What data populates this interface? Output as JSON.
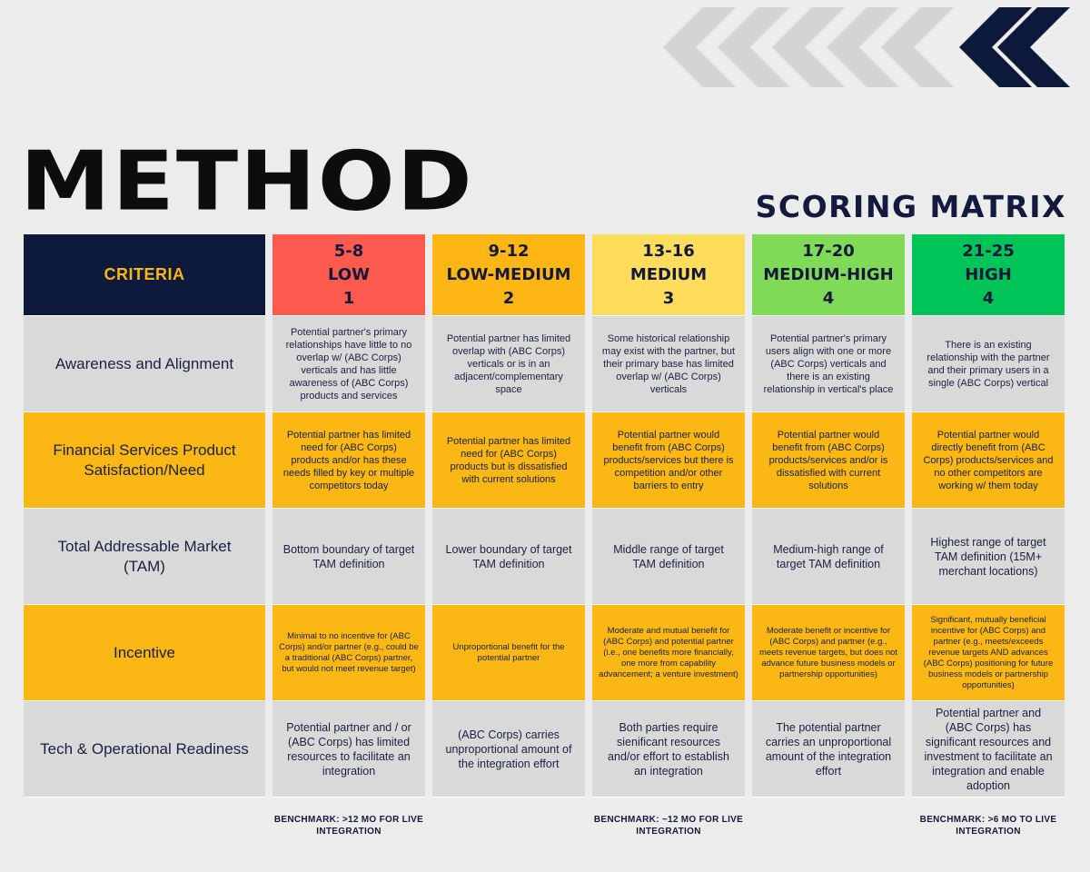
{
  "header": {
    "title": "METHOD",
    "subtitle": "SCORING MATRIX"
  },
  "colors": {
    "navy": "#0e1a3b",
    "low": "#fe5a4f",
    "low_medium": "#fdb614",
    "medium": "#fedd5c",
    "medium_high": "#7fdb57",
    "high": "#00c457",
    "criteria_gold": "#fbb714",
    "grey": "#d9d9d9"
  },
  "matrix": {
    "criteria_header": "CRITERIA",
    "levels": [
      {
        "range": "5-8",
        "label": "LOW",
        "score": "1"
      },
      {
        "range": "9-12",
        "label": "LOW-MEDIUM",
        "score": "2"
      },
      {
        "range": "13-16",
        "label": "MEDIUM",
        "score": "3"
      },
      {
        "range": "17-20",
        "label": "MEDIUM-HIGH",
        "score": "4"
      },
      {
        "range": "21-25",
        "label": "HIGH",
        "score": "4"
      }
    ],
    "rows": [
      {
        "criterion": "Awareness and Alignment",
        "cells": [
          "Potential partner's primary relationships have little to no overlap w/ (ABC Corps) verticals and has little awareness of (ABC Corps) products and services",
          "Potential partner has limited overlap with (ABC Corps) verticals or is in an adjacent/complementary space",
          "Some historical relationship may exist with the partner, but their primary base has limited overlap w/ (ABC Corps) verticals",
          "Potential partner's primary users align with one or more (ABC Corps) verticals and there is an existing relationship in vertical's place",
          "There is an existing relationship with the partner and their primary users in a single (ABC Corps) vertical"
        ]
      },
      {
        "criterion": "Financial Services Product Satisfaction/Need",
        "cells": [
          "Potential partner has limited need for (ABC Corps) products and/or has these needs filled by key or multiple competitors today",
          "Potential partner has limited need for (ABC Corps) products but is dissatisfied with current solutions",
          "Potential partner would benefit from (ABC Corps) products/services but there is competition and/or other barriers to entry",
          "Potential partner would benefit from (ABC Corps) products/services and/or is dissatisfied with current solutions",
          "Potential partner would directly benefit from (ABC Corps) products/services and no other competitors are working w/ them today"
        ]
      },
      {
        "criterion": "Total Addressable Market (TAM)",
        "cells": [
          "Bottom boundary of target TAM definition",
          "Lower boundary of target TAM definition",
          "Middle range of target TAM definition",
          "Medium-high range of target TAM definition",
          "Highest range of target TAM definition (15M+ merchant locations)"
        ]
      },
      {
        "criterion": "Incentive",
        "cells": [
          "Minimal to no incentive for (ABC Corps) and/or partner (e.g., could be a traditional (ABC Corps) partner, but would not meet revenue target)",
          "Unproportional benefit for the potential partner",
          "Moderate and mutual benefit for (ABC Corps) and potential partner (i.e., one benefits more financially, one more from capability advancement; a venture investment)",
          "Moderate benefit or incentive for (ABC Corps) and partner (e.g., meets revenue targets, but does not advance future business models or partnership opportunities)",
          "Significant, mutually beneficial incentive for (ABC Corps) and partner (e.g., meets/exceeds revenue targets AND advances (ABC Corps) positioning for future business models or partnership opportunities)"
        ]
      },
      {
        "criterion": "Tech & Operational Readiness",
        "cells": [
          "Potential partner and / or (ABC Corps) has limited resources to facilitate an integration",
          "(ABC Corps) carries unproportional amount of the integration effort",
          "Both parties require sienificant resources and/or effort to establish an integration",
          "The potential partner carries an unproportional amount of the integration effort",
          "Potential partner and (ABC Corps) has significant resources and investment to facilitate an integration and enable adoption"
        ]
      }
    ]
  },
  "benchmarks": [
    "BENCHMARK: >12 MO FOR LIVE INTEGRATION",
    "BENCHMARK: ~12 MO FOR LIVE INTEGRATION",
    "BENCHMARK: >6 MO TO LIVE INTEGRATION"
  ]
}
